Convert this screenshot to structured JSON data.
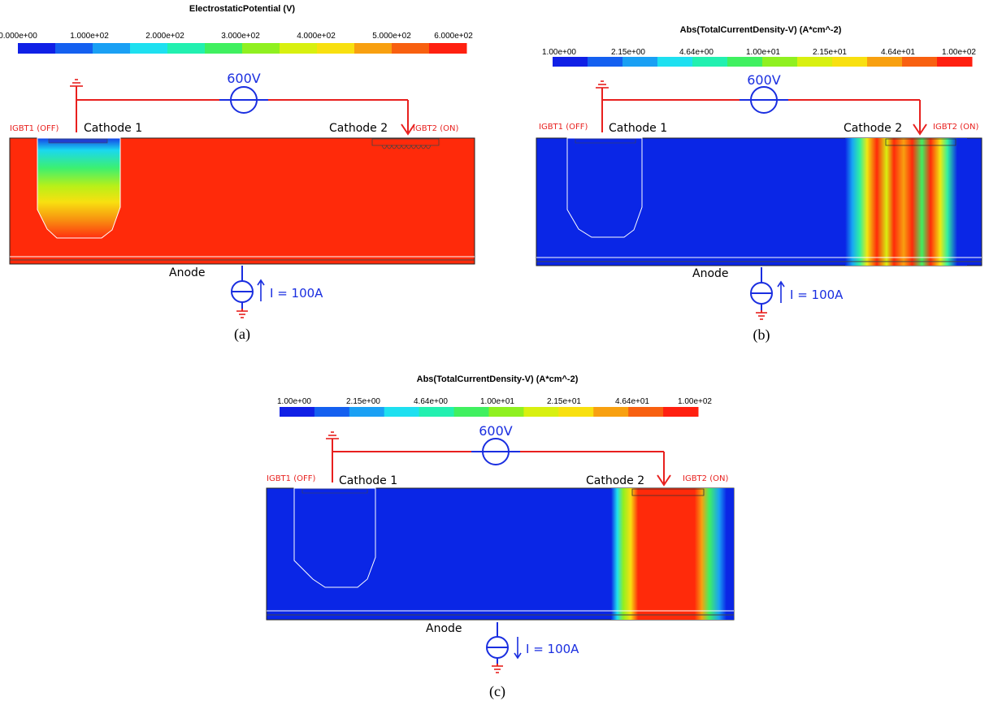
{
  "panels": [
    {
      "id": "a",
      "colorbar": {
        "title": "ElectrostaticPotential (V)",
        "ticks": [
          "0.000e+00",
          "1.000e+02",
          "2.000e+02",
          "3.000e+02",
          "4.000e+02",
          "5.000e+02",
          "6.000e+02"
        ]
      },
      "voltage": "600V",
      "igbt1": "IGBT1 (OFF)",
      "cathode1": "Cathode 1",
      "cathode2": "Cathode 2",
      "igbt2": "IGBT2 (ON)",
      "anode": "Anode",
      "current": "I = 100A",
      "caption": "(a)"
    },
    {
      "id": "b",
      "colorbar": {
        "title": "Abs(TotalCurrentDensity-V) (A*cm^-2)",
        "ticks": [
          "1.00e+00",
          "2.15e+00",
          "4.64e+00",
          "1.00e+01",
          "2.15e+01",
          "4.64e+01",
          "1.00e+02"
        ]
      },
      "voltage": "600V",
      "igbt1": "IGBT1 (OFF)",
      "cathode1": "Cathode 1",
      "cathode2": "Cathode 2",
      "igbt2": "IGBT2 (ON)",
      "anode": "Anode",
      "current": "I = 100A",
      "caption": "(b)"
    },
    {
      "id": "c",
      "colorbar": {
        "title": "Abs(TotalCurrentDensity-V) (A*cm^-2)",
        "ticks": [
          "1.00e+00",
          "2.15e+00",
          "4.64e+00",
          "1.00e+01",
          "2.15e+01",
          "4.64e+01",
          "1.00e+02"
        ]
      },
      "voltage": "600V",
      "igbt1": "IGBT1 (OFF)",
      "cathode1": "Cathode 1",
      "cathode2": "Cathode 2",
      "igbt2": "IGBT2 (ON)",
      "anode": "Anode",
      "current": "I = 100A",
      "caption": "(c)"
    }
  ],
  "colors": {
    "circuit_red": "#e8201e",
    "source_blue": "#1a2ee0",
    "field_red": "#ff2a0a",
    "field_blue": "#0a26e6",
    "colormap": [
      "#1020e6",
      "#1460f0",
      "#1aa0f4",
      "#1ee0f0",
      "#22f0b0",
      "#40f060",
      "#90f020",
      "#d8f010",
      "#f8e010",
      "#f8a010",
      "#f86010",
      "#ff2010"
    ]
  }
}
